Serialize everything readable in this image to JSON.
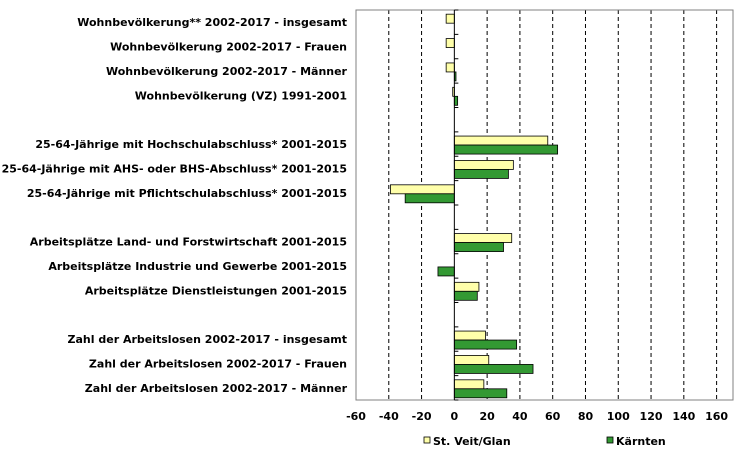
{
  "chart_data": {
    "type": "bar",
    "orientation": "horizontal",
    "categories": [
      "Wohnbevölkerung** 2002-2017 - insgesamt",
      "Wohnbevölkerung 2002-2017 - Frauen",
      "Wohnbevölkerung 2002-2017 - Männer",
      "Wohnbevölkerung (VZ) 1991-2001",
      "",
      "25-64-Jährige mit Hochschulabschluss* 2001-2015",
      "25-64-Jährige mit AHS- oder BHS-Abschluss* 2001-2015",
      "25-64-Jährige mit Pflichtschulabschluss* 2001-2015",
      "",
      "Arbeitsplätze Land- und Forstwirtschaft 2001-2015",
      "Arbeitsplätze Industrie und Gewerbe 2001-2015",
      "Arbeitsplätze Dienstleistungen 2001-2015",
      "",
      "Zahl der Arbeitslosen 2002-2017 - insgesamt",
      "Zahl der Arbeitslosen 2002-2017 - Frauen",
      "Zahl der Arbeitslosen 2002-2017 - Männer"
    ],
    "series": [
      {
        "name": "St. Veit/Glan",
        "color": "#ffffaa",
        "values": [
          -5,
          -5,
          -5,
          -1,
          null,
          57,
          36,
          -39,
          null,
          35,
          0,
          15,
          null,
          19,
          21,
          18
        ]
      },
      {
        "name": "Kärnten",
        "color": "#339933",
        "values": [
          0,
          0,
          1,
          2,
          null,
          63,
          33,
          -30,
          null,
          30,
          -10,
          14,
          null,
          38,
          48,
          32
        ]
      }
    ],
    "xlim": [
      -60,
      170
    ],
    "xticks": [
      "-60",
      "-40",
      "-20",
      "0",
      "20",
      "40",
      "60",
      "80",
      "100",
      "120",
      "140",
      "160"
    ],
    "grid": true,
    "legend_position": "bottom"
  }
}
